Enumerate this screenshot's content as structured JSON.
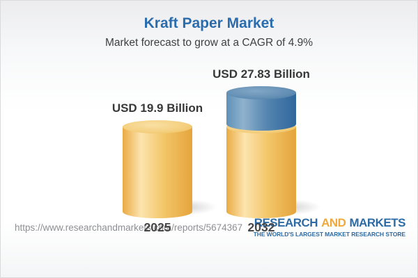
{
  "header": {
    "title": "Kraft Paper Market",
    "subtitle": "Market forecast to grow at a CAGR of 4.9%"
  },
  "chart_data": {
    "type": "bar",
    "title": "Kraft Paper Market",
    "subtitle": "Market forecast to grow at a CAGR of 4.9%",
    "unit": "USD Billion",
    "cagr_percent": 4.9,
    "categories": [
      "2025",
      "2032"
    ],
    "values": [
      19.9,
      27.83
    ],
    "value_labels": [
      "USD 19.9 Billion",
      "USD 27.83 Billion"
    ],
    "bars": [
      {
        "category": "2025",
        "total": 19.9,
        "segments": [
          {
            "name": "base",
            "value": 19.9,
            "color": "#f0c263"
          }
        ]
      },
      {
        "category": "2032",
        "total": 27.83,
        "segments": [
          {
            "name": "base",
            "value": 19.9,
            "color": "#f0c263"
          },
          {
            "name": "growth",
            "value": 7.93,
            "color": "#4f82ad"
          }
        ]
      }
    ],
    "colors": {
      "gold": "#f0c263",
      "blue": "#4f82ad"
    },
    "legend": null,
    "grid": false,
    "axes": {
      "x_labels_visible": true,
      "y_axis_visible": false
    }
  },
  "footer": {
    "url": "https://www.researchandmarkets.com/reports/5674367",
    "logo": {
      "word1": "RESEARCH",
      "word2": "AND",
      "word3": "MARKETS",
      "tagline": "THE WORLD'S LARGEST MARKET RESEARCH STORE",
      "blue": "#2d6ba5",
      "orange": "#efa93c"
    }
  }
}
